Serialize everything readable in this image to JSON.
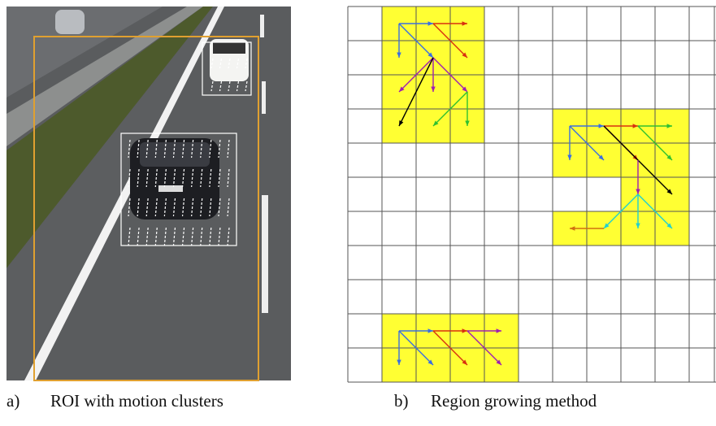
{
  "figure": {
    "panels": [
      {
        "label": "a)",
        "caption": "ROI with motion clusters"
      },
      {
        "label": "b)",
        "caption": "Region growing method"
      }
    ]
  }
}
